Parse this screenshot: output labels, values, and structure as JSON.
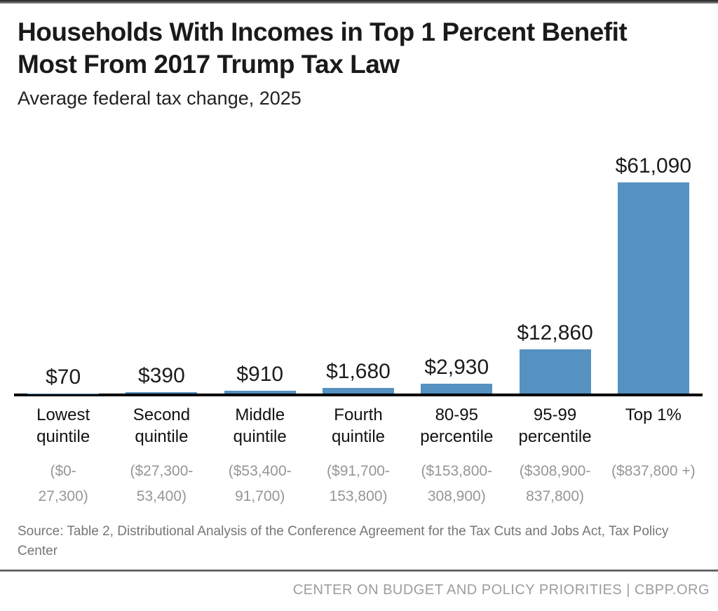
{
  "header": {
    "title": "Households With Incomes in Top 1 Percent Benefit Most From 2017 Trump Tax Law",
    "subtitle": "Average federal tax change, 2025"
  },
  "chart_data": {
    "type": "bar",
    "title": "Households With Incomes in Top 1 Percent Benefit Most From 2017 Trump Tax Law",
    "subtitle": "Average federal tax change, 2025",
    "categories": [
      "Lowest quintile",
      "Second quintile",
      "Middle quintile",
      "Fourth quintile",
      "80-95 percentile",
      "95-99 percentile",
      "Top 1%"
    ],
    "category_lines": [
      [
        "Lowest",
        "quintile"
      ],
      [
        "Second",
        "quintile"
      ],
      [
        "Middle",
        "quintile"
      ],
      [
        "Fourth",
        "quintile"
      ],
      [
        "80-95",
        "percentile"
      ],
      [
        "95-99",
        "percentile"
      ],
      [
        "Top 1%"
      ]
    ],
    "income_range_lines": [
      [
        "($0-",
        "27,300)"
      ],
      [
        "($27,300-",
        "53,400)"
      ],
      [
        "($53,400-",
        "91,700)"
      ],
      [
        "($91,700-",
        "153,800)"
      ],
      [
        "($153,800-",
        "308,900)"
      ],
      [
        "($308,900-",
        "837,800)"
      ],
      [
        "($837,800 +)"
      ]
    ],
    "values": [
      70,
      390,
      910,
      1680,
      2930,
      12860,
      61090
    ],
    "value_labels": [
      "$70",
      "$390",
      "$910",
      "$1,680",
      "$2,930",
      "$12,860",
      "$61,090"
    ],
    "ylim": [
      0,
      61090
    ],
    "xlabel": "",
    "ylabel": "",
    "grid": false,
    "legend": false,
    "bar_color": "#5591c1",
    "axis_color": "#000000"
  },
  "source": {
    "text": "Source: Table 2, Distributional Analysis of the Conference Agreement for the Tax Cuts and Jobs Act, Tax Policy Center"
  },
  "footer": {
    "branding": "CENTER ON BUDGET AND POLICY PRIORITIES | CBPP.ORG"
  }
}
